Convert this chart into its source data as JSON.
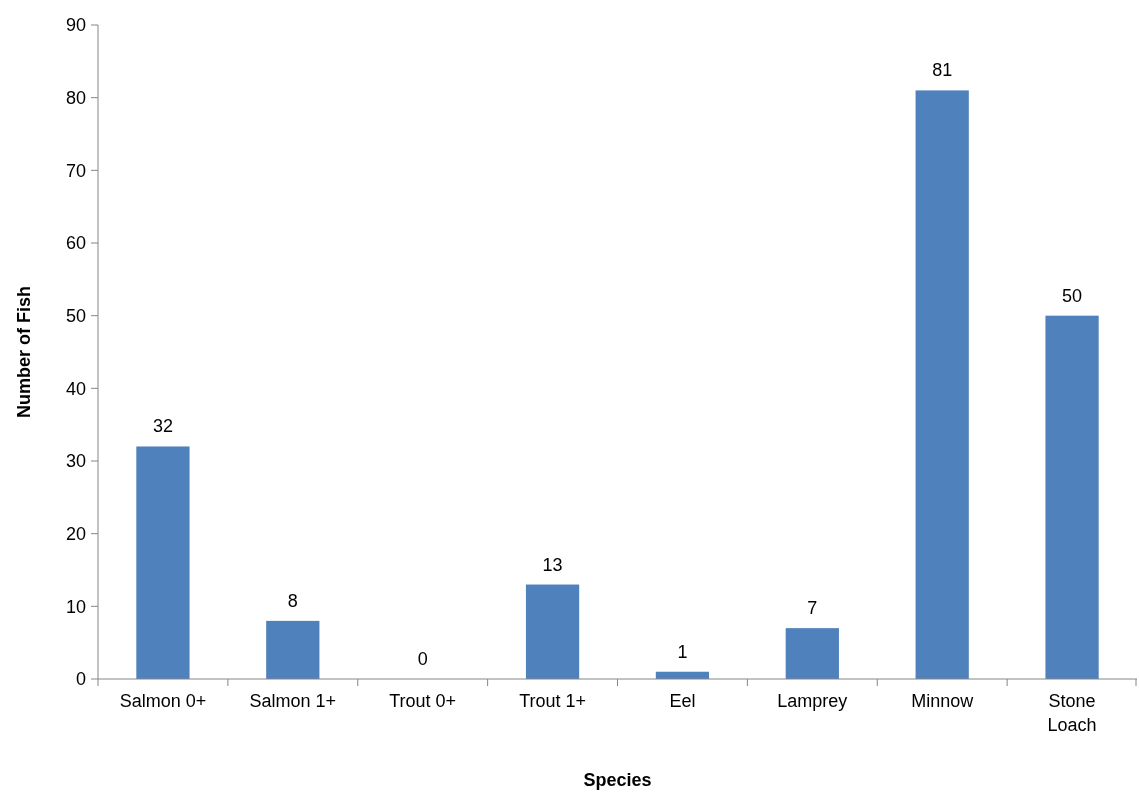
{
  "chart_data": {
    "type": "bar",
    "xlabel": "Species",
    "ylabel": "Number of Fish",
    "categories": [
      "Salmon 0+",
      "Salmon 1+",
      "Trout 0+",
      "Trout 1+",
      "Eel",
      "Lamprey",
      "Minnow",
      "Stone Loach"
    ],
    "values": [
      32,
      8,
      0,
      13,
      1,
      7,
      81,
      50
    ],
    "color": "#4f81bd",
    "ylim": [
      0,
      90
    ],
    "yticks": [
      0,
      10,
      20,
      30,
      40,
      50,
      60,
      70,
      80,
      90
    ],
    "grid": false,
    "data_labels": true
  }
}
